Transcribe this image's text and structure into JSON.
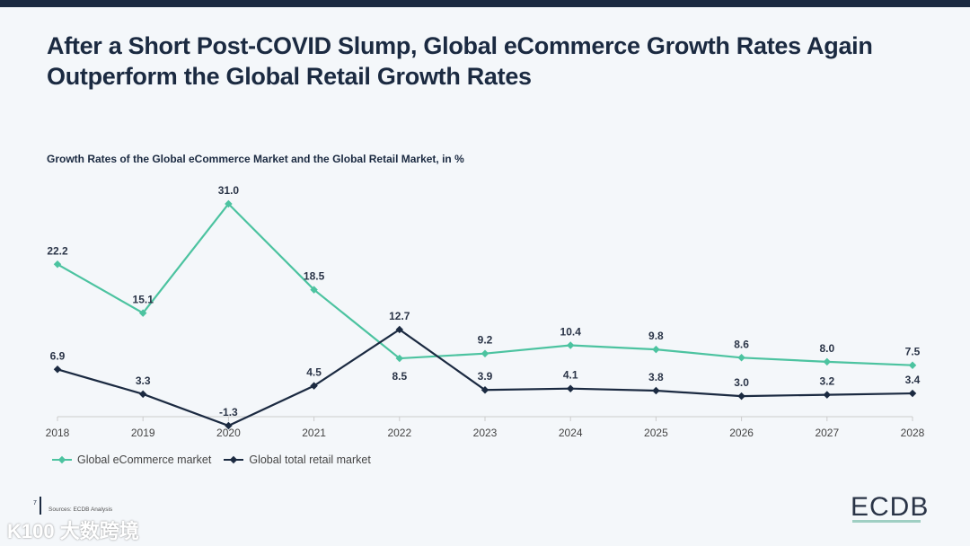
{
  "title": "After a Short Post-COVID Slump, Global eCommerce Growth Rates Again Outperform the Global Retail Growth Rates",
  "footer": {
    "page": "7",
    "sources": "Sources:   ECDB Analysis",
    "logo": "ECDB",
    "watermark": "K100 大数跨境"
  },
  "chart_data": {
    "type": "line",
    "title": "Growth Rates of the Global eCommerce Market and the Global Retail Market, in %",
    "x": [
      "2018",
      "2019",
      "2020",
      "2021",
      "2022",
      "2023",
      "2024",
      "2025",
      "2026",
      "2027",
      "2028"
    ],
    "ylim": [
      -1.3,
      31.0
    ],
    "grid": false,
    "legend": "bottom-left",
    "series": [
      {
        "name": "Global eCommerce market",
        "color": "#4cc3a0",
        "values": [
          22.2,
          15.1,
          31.0,
          18.5,
          8.5,
          9.2,
          10.4,
          9.8,
          8.6,
          8.0,
          7.5
        ]
      },
      {
        "name": "Global total retail market",
        "color": "#1b2a41",
        "values": [
          6.9,
          3.3,
          -1.3,
          4.5,
          12.7,
          3.9,
          4.1,
          3.8,
          3.0,
          3.2,
          3.4
        ]
      }
    ]
  }
}
